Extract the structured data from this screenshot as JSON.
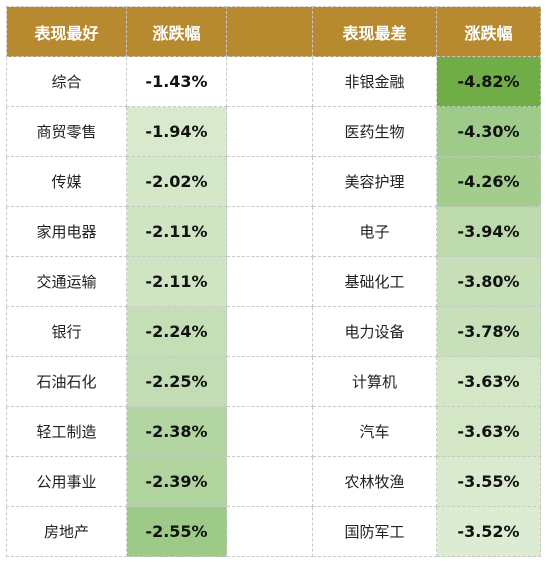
{
  "headers": {
    "best": "表现最好",
    "change_best": "涨跌幅",
    "worst": "表现最差",
    "change_worst": "涨跌幅"
  },
  "best": [
    {
      "name": "综合",
      "change": "-1.43%",
      "color": "#ffffff"
    },
    {
      "name": "商贸零售",
      "change": "-1.94%",
      "color": "#d8e9cd"
    },
    {
      "name": "传媒",
      "change": "-2.02%",
      "color": "#d4e7c8"
    },
    {
      "name": "家用电器",
      "change": "-2.11%",
      "color": "#cfe4c3"
    },
    {
      "name": "交通运输",
      "change": "-2.11%",
      "color": "#cfe4c3"
    },
    {
      "name": "银行",
      "change": "-2.24%",
      "color": "#c4deb6"
    },
    {
      "name": "石油石化",
      "change": "-2.25%",
      "color": "#c2ddb4"
    },
    {
      "name": "轻工制造",
      "change": "-2.38%",
      "color": "#b3d5a1"
    },
    {
      "name": "公用事业",
      "change": "-2.39%",
      "color": "#b1d49f"
    },
    {
      "name": "房地产",
      "change": "-2.55%",
      "color": "#9dca87"
    }
  ],
  "worst": [
    {
      "name": "非银金融",
      "change": "-4.82%",
      "color": "#70ad47"
    },
    {
      "name": "医药生物",
      "change": "-4.30%",
      "color": "#9ecb89"
    },
    {
      "name": "美容护理",
      "change": "-4.26%",
      "color": "#a2cd8d"
    },
    {
      "name": "电子",
      "change": "-3.94%",
      "color": "#bcdaac"
    },
    {
      "name": "基础化工",
      "change": "-3.80%",
      "color": "#c6dfb8"
    },
    {
      "name": "电力设备",
      "change": "-3.78%",
      "color": "#c8e0ba"
    },
    {
      "name": "计算机",
      "change": "-3.63%",
      "color": "#d3e7c7"
    },
    {
      "name": "汽车",
      "change": "-3.63%",
      "color": "#d3e7c7"
    },
    {
      "name": "农林牧渔",
      "change": "-3.55%",
      "color": "#d9eace"
    },
    {
      "name": "国防军工",
      "change": "-3.52%",
      "color": "#dcecd2"
    }
  ]
}
